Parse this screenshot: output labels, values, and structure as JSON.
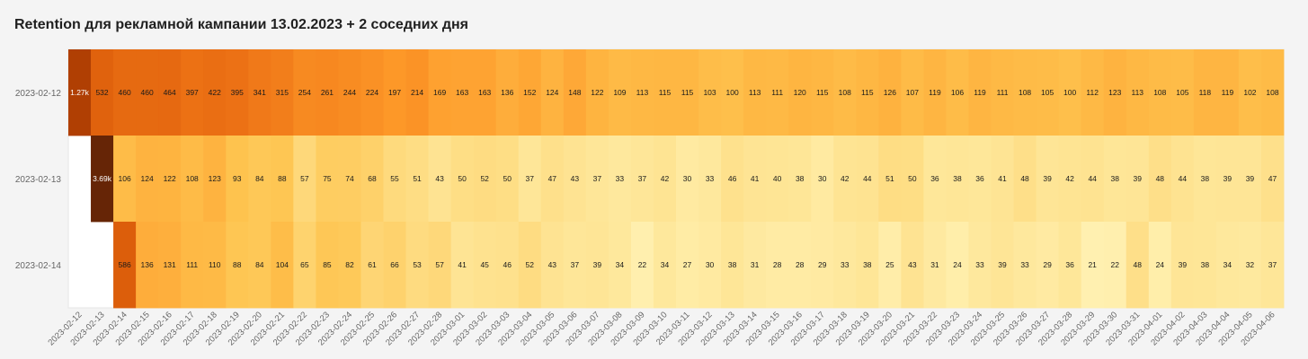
{
  "chart_data": {
    "type": "heatmap",
    "title": "Retention для рекламной кампании 13.02.2023 + 2 соседних дня",
    "xlabel": "",
    "ylabel": "",
    "rows": [
      "2023-02-12",
      "2023-02-13",
      "2023-02-14"
    ],
    "columns": [
      "2023-02-12",
      "2023-02-13",
      "2023-02-14",
      "2023-02-15",
      "2023-02-16",
      "2023-02-17",
      "2023-02-18",
      "2023-02-19",
      "2023-02-20",
      "2023-02-21",
      "2023-02-22",
      "2023-02-23",
      "2023-02-24",
      "2023-02-25",
      "2023-02-26",
      "2023-02-27",
      "2023-02-28",
      "2023-03-01",
      "2023-03-02",
      "2023-03-03",
      "2023-03-04",
      "2023-03-05",
      "2023-03-06",
      "2023-03-07",
      "2023-03-08",
      "2023-03-09",
      "2023-03-10",
      "2023-03-11",
      "2023-03-12",
      "2023-03-13",
      "2023-03-14",
      "2023-03-15",
      "2023-03-16",
      "2023-03-17",
      "2023-03-18",
      "2023-03-19",
      "2023-03-20",
      "2023-03-21",
      "2023-03-22",
      "2023-03-23",
      "2023-03-24",
      "2023-03-25",
      "2023-03-26",
      "2023-03-27",
      "2023-03-28",
      "2023-03-29",
      "2023-03-30",
      "2023-03-31",
      "2023-04-01",
      "2023-04-02",
      "2023-04-03",
      "2023-04-04",
      "2023-04-05",
      "2023-04-06"
    ],
    "values": [
      [
        1270,
        532,
        460,
        460,
        464,
        397,
        422,
        395,
        341,
        315,
        254,
        261,
        244,
        224,
        197,
        214,
        169,
        163,
        163,
        136,
        152,
        124,
        148,
        122,
        109,
        113,
        115,
        115,
        103,
        100,
        113,
        111,
        120,
        115,
        108,
        115,
        126,
        107,
        119,
        106,
        119,
        111,
        108,
        105,
        100,
        112,
        123,
        113,
        108,
        105,
        118,
        119,
        102,
        108
      ],
      [
        null,
        3690,
        106,
        124,
        122,
        108,
        123,
        93,
        84,
        88,
        57,
        75,
        74,
        68,
        55,
        51,
        43,
        50,
        52,
        50,
        37,
        47,
        43,
        37,
        33,
        37,
        42,
        30,
        33,
        46,
        41,
        40,
        38,
        30,
        42,
        44,
        51,
        50,
        36,
        38,
        36,
        41,
        48,
        39,
        42,
        44,
        38,
        39,
        48,
        44,
        38,
        39,
        39,
        47
      ],
      [
        null,
        null,
        586,
        136,
        131,
        111,
        110,
        88,
        84,
        104,
        65,
        85,
        82,
        61,
        66,
        53,
        57,
        41,
        45,
        46,
        52,
        43,
        37,
        39,
        34,
        22,
        34,
        27,
        30,
        38,
        31,
        28,
        28,
        29,
        33,
        38,
        25,
        43,
        31,
        24,
        33,
        39,
        33,
        29,
        36,
        21,
        22,
        48,
        24,
        39,
        38,
        34,
        32,
        37
      ]
    ],
    "labels": [
      [
        "1.27k",
        "532",
        "460",
        "460",
        "464",
        "397",
        "422",
        "395",
        "341",
        "315",
        "254",
        "261",
        "244",
        "224",
        "197",
        "214",
        "169",
        "163",
        "163",
        "136",
        "152",
        "124",
        "148",
        "122",
        "109",
        "113",
        "115",
        "115",
        "103",
        "100",
        "113",
        "111",
        "120",
        "115",
        "108",
        "115",
        "126",
        "107",
        "119",
        "106",
        "119",
        "111",
        "108",
        "105",
        "100",
        "112",
        "123",
        "113",
        "108",
        "105",
        "118",
        "119",
        "102",
        "108"
      ],
      [
        "",
        "3.69k",
        "106",
        "124",
        "122",
        "108",
        "123",
        "93",
        "84",
        "88",
        "57",
        "75",
        "74",
        "68",
        "55",
        "51",
        "43",
        "50",
        "52",
        "50",
        "37",
        "47",
        "43",
        "37",
        "33",
        "37",
        "42",
        "30",
        "33",
        "46",
        "41",
        "40",
        "38",
        "30",
        "42",
        "44",
        "51",
        "50",
        "36",
        "38",
        "36",
        "41",
        "48",
        "39",
        "42",
        "44",
        "38",
        "39",
        "48",
        "44",
        "38",
        "39",
        "39",
        "47"
      ],
      [
        "",
        "",
        "586",
        "136",
        "131",
        "111",
        "110",
        "88",
        "84",
        "104",
        "65",
        "85",
        "82",
        "61",
        "66",
        "53",
        "57",
        "41",
        "45",
        "46",
        "52",
        "43",
        "37",
        "39",
        "34",
        "22",
        "34",
        "27",
        "30",
        "38",
        "31",
        "28",
        "28",
        "29",
        "33",
        "38",
        "25",
        "43",
        "31",
        "24",
        "33",
        "39",
        "33",
        "29",
        "36",
        "21",
        "22",
        "48",
        "24",
        "39",
        "38",
        "34",
        "32",
        "37"
      ]
    ],
    "colors": {
      "stops": [
        "#fff0b0",
        "#fee391",
        "#fec44f",
        "#fe9929",
        "#ec7014",
        "#cc4c02",
        "#993404",
        "#662506"
      ],
      "empty": "#ffffff",
      "text": "#1a1a1a",
      "text_dark_cell": "#ffffff",
      "axis_text": "#666666",
      "grid_border": "#e6e6e6"
    },
    "color_scale": "log",
    "legend": "none"
  }
}
